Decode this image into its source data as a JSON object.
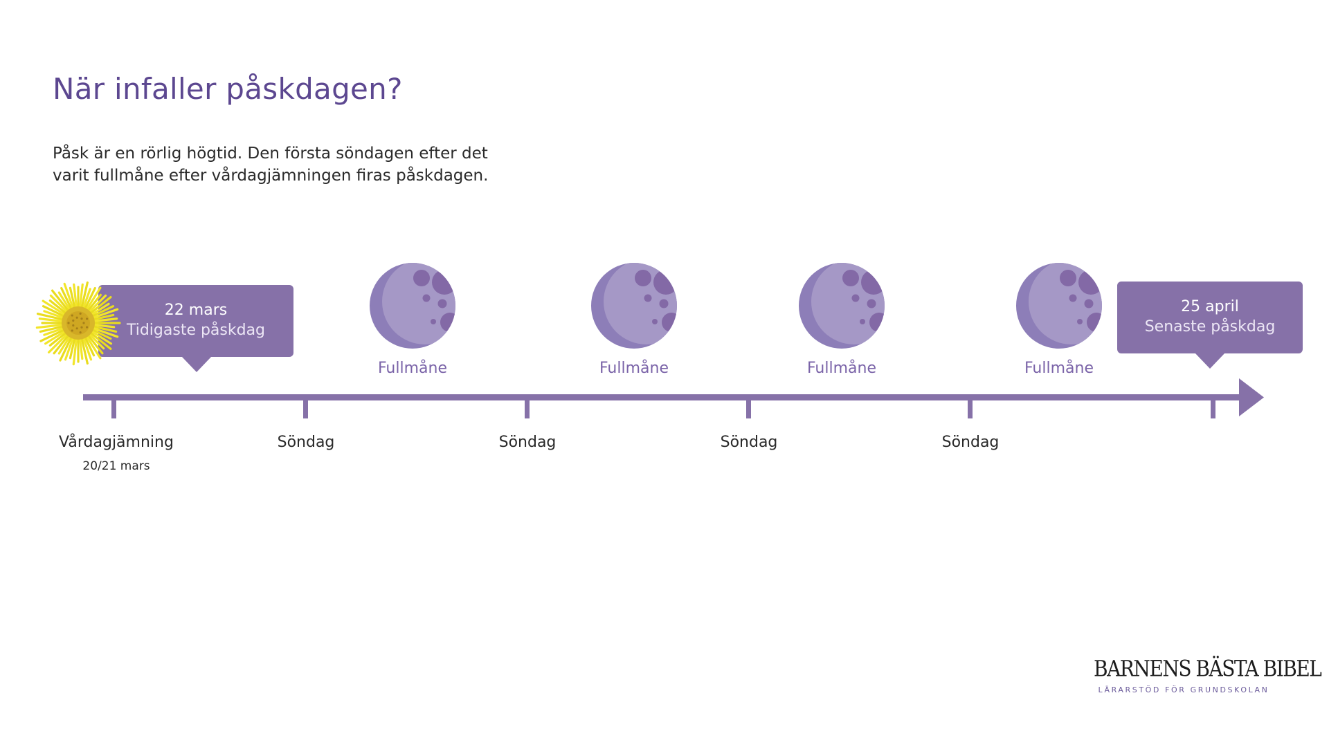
{
  "title": "När infaller påskdagen?",
  "intro": {
    "line1": "Påsk är en rörlig högtid. Den första söndagen efter det",
    "line2": "varit fullmåne efter vårdagjämningen firas påskdagen."
  },
  "colors": {
    "accent": "#8671a8",
    "moon": "#a598c6",
    "moon_shadow": "#8d7eb8",
    "crater": "#8369a6",
    "flower": "#f2e52a",
    "flower_center": "#d9b72a",
    "title": "#5c4790"
  },
  "timeline": {
    "ticks": [
      {
        "label": "Vårdagjämning",
        "sublabel": "20/21 mars"
      },
      {
        "label": "Söndag"
      },
      {
        "label": "Söndag"
      },
      {
        "label": "Söndag"
      },
      {
        "label": "Söndag"
      },
      {
        "label": ""
      }
    ],
    "moons": [
      {
        "label": "Fullmåne"
      },
      {
        "label": "Fullmåne"
      },
      {
        "label": "Fullmåne"
      },
      {
        "label": "Fullmåne"
      }
    ],
    "earliest": {
      "date": "22 mars",
      "caption": "Tidigaste påskdag"
    },
    "latest": {
      "date": "25 april",
      "caption": "Senaste påskdag"
    },
    "flower_icon": "coltsfoot-flower-icon",
    "moon_icon": "full-moon-icon",
    "arrow_icon": "arrow-right-icon"
  },
  "logo": {
    "name": "BARNENS BÄSTA BIBEL",
    "tagline": "LÄRARSTÖD FÖR GRUNDSKOLAN"
  }
}
